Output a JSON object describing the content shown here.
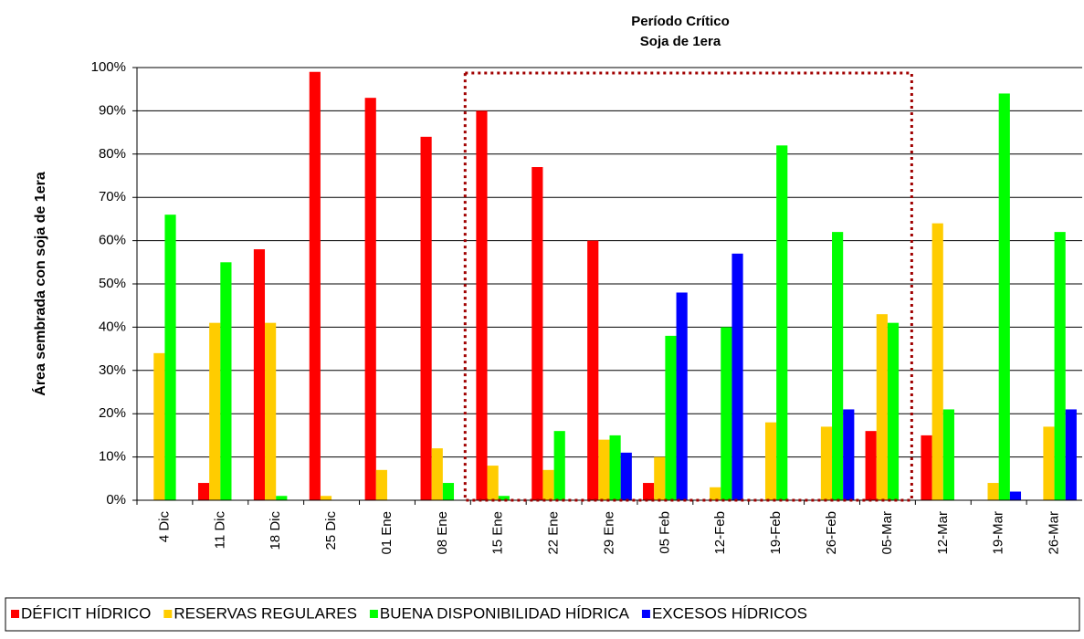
{
  "chart_data": {
    "type": "bar",
    "annotation": [
      "Período Crítico",
      "Soja de 1era"
    ],
    "y_label": "Área sembrada con soja de 1era",
    "categories": [
      "4 Dic",
      "11 Dic",
      "18 Dic",
      "25 Dic",
      "01 Ene",
      "08 Ene",
      "15 Ene",
      "22 Ene",
      "29 Ene",
      "05 Feb",
      "12-Feb",
      "19-Feb",
      "26-Feb",
      "05-Mar",
      "12-Mar",
      "19-Mar",
      "26-Mar"
    ],
    "series": [
      {
        "name": "DÉFICIT HÍDRICO",
        "color": "#ff0000",
        "values": [
          0,
          4,
          58,
          99,
          93,
          84,
          90,
          77,
          60,
          4,
          0,
          0,
          0,
          16,
          15,
          0,
          0
        ]
      },
      {
        "name": "RESERVAS REGULARES",
        "color": "#ffcc00",
        "values": [
          34,
          41,
          41,
          1,
          7,
          12,
          8,
          7,
          14,
          10,
          3,
          18,
          17,
          43,
          64,
          4,
          17
        ]
      },
      {
        "name": "BUENA DISPONIBILIDAD HÍDRICA",
        "color": "#00ff00",
        "values": [
          66,
          55,
          1,
          0,
          0,
          4,
          1,
          16,
          15,
          38,
          40,
          82,
          62,
          41,
          21,
          94,
          62
        ]
      },
      {
        "name": "EXCESOS HÍDRICOS",
        "color": "#0000ff",
        "values": [
          0,
          0,
          0,
          0,
          0,
          0,
          0,
          0,
          11,
          48,
          57,
          0,
          21,
          0,
          0,
          2,
          21
        ]
      }
    ],
    "ylim": [
      0,
      100
    ],
    "yticks": [
      {
        "value": 0,
        "label": "0%"
      },
      {
        "value": 10,
        "label": "10%"
      },
      {
        "value": 20,
        "label": "20%"
      },
      {
        "value": 30,
        "label": "30%"
      },
      {
        "value": 40,
        "label": "40%"
      },
      {
        "value": 50,
        "label": "50%"
      },
      {
        "value": 60,
        "label": "60%"
      },
      {
        "value": 70,
        "label": "70%"
      },
      {
        "value": 80,
        "label": "80%"
      },
      {
        "value": 90,
        "label": "90%"
      },
      {
        "value": 100,
        "label": "100%"
      }
    ],
    "grid": true,
    "legend": "bottom"
  }
}
